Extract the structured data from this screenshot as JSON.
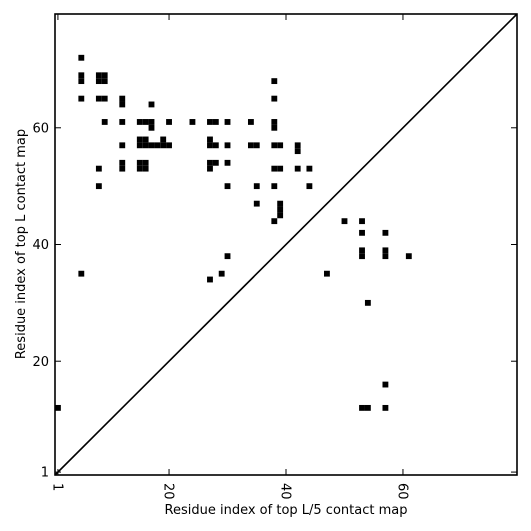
{
  "chart_data": {
    "type": "heatmap",
    "xlabel": "Residue index of top L/5 contact map",
    "ylabel": "Residue index of top L contact map",
    "xlim": [
      0.5,
      79.5
    ],
    "ylim": [
      0.5,
      79.5
    ],
    "x_ticks": [
      1,
      20,
      40,
      60
    ],
    "y_ticks": [
      1,
      20,
      40,
      60
    ],
    "diagonal": true,
    "upper_contacts": [
      [
        1,
        12
      ],
      [
        5,
        35
      ],
      [
        27,
        34
      ],
      [
        29,
        35
      ],
      [
        30,
        38
      ],
      [
        47,
        35
      ],
      [
        50,
        44
      ],
      [
        53,
        44
      ],
      [
        53,
        42
      ],
      [
        53,
        39
      ],
      [
        53,
        38
      ],
      [
        54,
        30
      ],
      [
        57,
        42
      ],
      [
        57,
        39
      ],
      [
        57,
        38
      ],
      [
        61,
        38
      ],
      [
        53,
        12
      ],
      [
        54,
        12
      ],
      [
        57,
        12
      ],
      [
        57,
        16
      ]
    ],
    "lower_contacts": [
      [
        5,
        72
      ],
      [
        5,
        69
      ],
      [
        5,
        68
      ],
      [
        5,
        65
      ],
      [
        8,
        69
      ],
      [
        8,
        68
      ],
      [
        8,
        65
      ],
      [
        8,
        53
      ],
      [
        8,
        50
      ],
      [
        9,
        69
      ],
      [
        9,
        68
      ],
      [
        9,
        65
      ],
      [
        9,
        61
      ],
      [
        12,
        65
      ],
      [
        12,
        64
      ],
      [
        12,
        61
      ],
      [
        12,
        57
      ],
      [
        12,
        54
      ],
      [
        12,
        53
      ],
      [
        15,
        61
      ],
      [
        15,
        58
      ],
      [
        15,
        57
      ],
      [
        15,
        54
      ],
      [
        15,
        53
      ],
      [
        16,
        61
      ],
      [
        16,
        58
      ],
      [
        16,
        57
      ],
      [
        16,
        54
      ],
      [
        16,
        53
      ],
      [
        17,
        64
      ],
      [
        17,
        61
      ],
      [
        17,
        60
      ],
      [
        17,
        57
      ],
      [
        18,
        57
      ],
      [
        19,
        58
      ],
      [
        19,
        57
      ],
      [
        20,
        61
      ],
      [
        20,
        57
      ],
      [
        24,
        61
      ],
      [
        27,
        61
      ],
      [
        27,
        58
      ],
      [
        27,
        57
      ],
      [
        27,
        54
      ],
      [
        27,
        53
      ],
      [
        28,
        61
      ],
      [
        28,
        57
      ],
      [
        28,
        54
      ],
      [
        30,
        61
      ],
      [
        30,
        57
      ],
      [
        30,
        54
      ],
      [
        30,
        50
      ],
      [
        34,
        61
      ],
      [
        34,
        57
      ],
      [
        35,
        57
      ],
      [
        35,
        50
      ],
      [
        35,
        47
      ],
      [
        38,
        68
      ],
      [
        38,
        65
      ],
      [
        38,
        61
      ],
      [
        38,
        60
      ],
      [
        38,
        57
      ],
      [
        38,
        53
      ],
      [
        38,
        50
      ],
      [
        38,
        44
      ],
      [
        39,
        57
      ],
      [
        39,
        53
      ],
      [
        39,
        47
      ],
      [
        39,
        46
      ],
      [
        39,
        45
      ],
      [
        42,
        57
      ],
      [
        42,
        56
      ],
      [
        42,
        53
      ],
      [
        44,
        53
      ],
      [
        44,
        50
      ]
    ]
  }
}
